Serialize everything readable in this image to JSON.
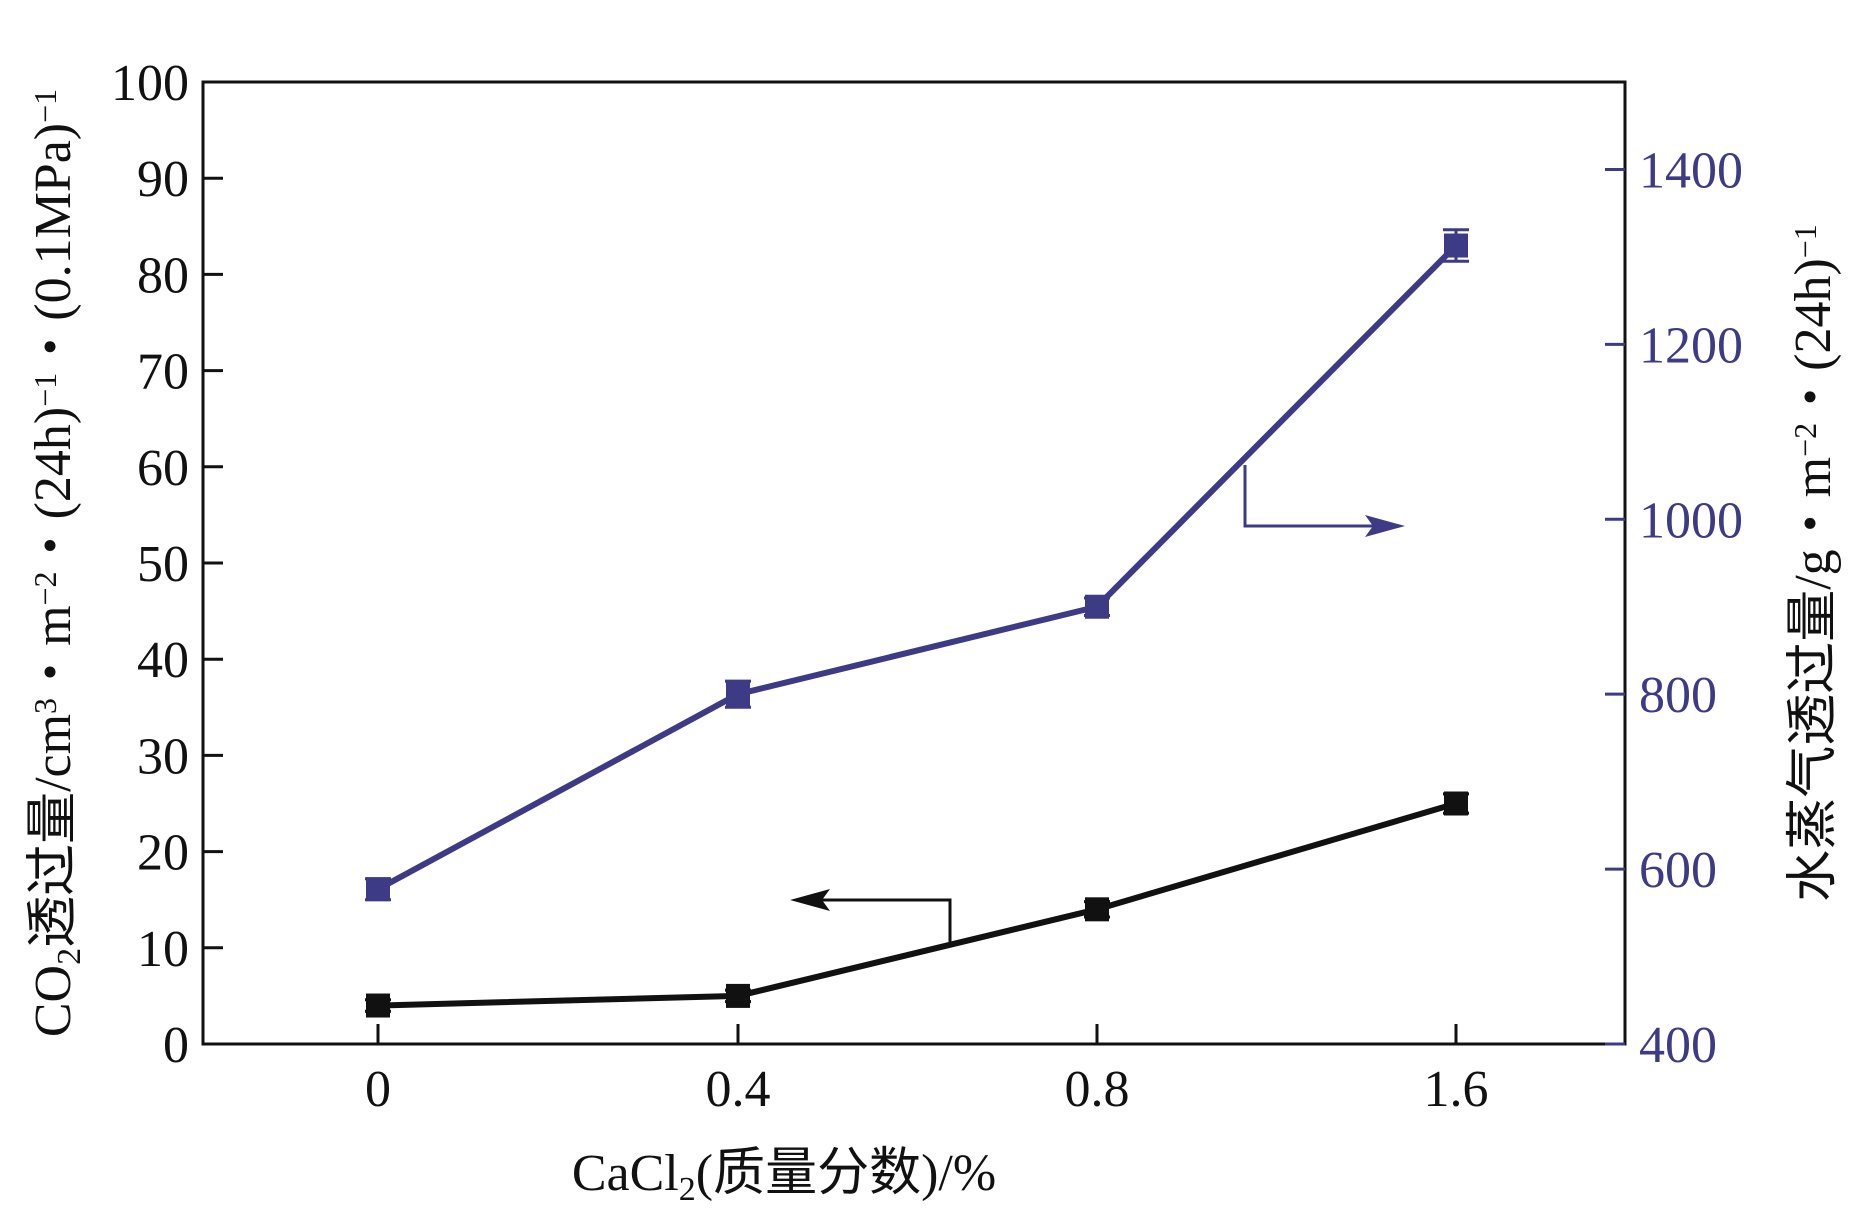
{
  "chart_data": {
    "type": "line",
    "categories": [
      "0",
      "0.4",
      "0.8",
      "1.6"
    ],
    "xlabel": {
      "parts": [
        {
          "text": "CaCl",
          "style": "normal"
        },
        {
          "text": "2",
          "style": "sub"
        },
        {
          "text": "(质量分数)/%",
          "style": "normal"
        }
      ]
    },
    "ylabel_left": {
      "parts": [
        {
          "text": "CO",
          "style": "normal"
        },
        {
          "text": "2",
          "style": "sub"
        },
        {
          "text": "透过量/cm",
          "style": "normal"
        },
        {
          "text": "3",
          "style": "sup"
        },
        {
          "text": "・m",
          "style": "normal"
        },
        {
          "text": "−2",
          "style": "sup"
        },
        {
          "text": "・(24h)",
          "style": "normal"
        },
        {
          "text": "−1",
          "style": "sup"
        },
        {
          "text": "・(0.1MPa)",
          "style": "normal"
        },
        {
          "text": "−1",
          "style": "sup"
        }
      ]
    },
    "ylabel_right": {
      "parts": [
        {
          "text": "水蒸气透过量/g・m",
          "style": "normal"
        },
        {
          "text": "−2",
          "style": "sup"
        },
        {
          "text": "・(24h)",
          "style": "normal"
        },
        {
          "text": "−1",
          "style": "sup"
        }
      ]
    },
    "y_left": {
      "range": [
        0,
        100
      ],
      "ticks": [
        "0",
        "10",
        "20",
        "30",
        "40",
        "50",
        "60",
        "70",
        "80",
        "90",
        "100"
      ]
    },
    "y_right": {
      "range": [
        400,
        1500
      ],
      "ticks": [
        "400",
        "600",
        "800",
        "1000",
        "1200",
        "1400"
      ]
    },
    "series": [
      {
        "axis": "left",
        "color": "#111111",
        "values": [
          4,
          5,
          14,
          25
        ],
        "errors": [
          0.6,
          0.6,
          0.8,
          1.0
        ]
      },
      {
        "axis": "right",
        "color": "#3d3a86",
        "values": [
          577,
          800,
          900,
          1313
        ],
        "errors": [
          12,
          15,
          10,
          18
        ]
      }
    ],
    "grid": false,
    "legend": "none"
  }
}
